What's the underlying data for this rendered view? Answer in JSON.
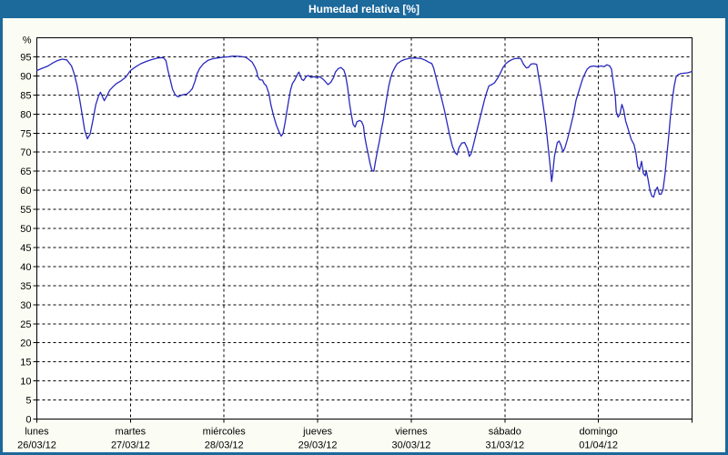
{
  "window": {
    "title": "Humedad relativa [%]"
  },
  "colors": {
    "frame_and_header": "#1C699B",
    "panel_bg": "#FBFDF4",
    "plot_bg": "#FFFFFF",
    "line": "#2828BE",
    "grid": "#000000",
    "text": "#000000",
    "title_text": "#FFFFFF"
  },
  "chart_data": {
    "type": "line",
    "title": "Humedad relativa [%]",
    "grid": "dashed",
    "legend": "none",
    "y_axis": {
      "unit_label": "%",
      "min": 0,
      "max": 100,
      "tick_step": 5,
      "tick_labels": [
        "0",
        "5",
        "10",
        "15",
        "20",
        "25",
        "30",
        "35",
        "40",
        "45",
        "50",
        "55",
        "60",
        "65",
        "70",
        "75",
        "80",
        "85",
        "90",
        "95"
      ]
    },
    "x_axis": {
      "days": [
        {
          "name": "lunes",
          "date": "26/03/12"
        },
        {
          "name": "martes",
          "date": "27/03/12"
        },
        {
          "name": "miércoles",
          "date": "28/03/12"
        },
        {
          "name": "jueves",
          "date": "29/03/12"
        },
        {
          "name": "viernes",
          "date": "30/03/12"
        },
        {
          "name": "sábado",
          "date": "31/03/12"
        },
        {
          "name": "domingo",
          "date": "01/04/12"
        }
      ],
      "span_days": 7
    },
    "series": [
      {
        "name": "Humedad relativa",
        "color": "#2828BE",
        "x_unit": "days_from_start",
        "y_unit": "percent",
        "points": [
          [
            0.0,
            91.4
          ],
          [
            0.05,
            91.9
          ],
          [
            0.12,
            92.6
          ],
          [
            0.17,
            93.4
          ],
          [
            0.22,
            94.0
          ],
          [
            0.27,
            94.4
          ],
          [
            0.32,
            94.2
          ],
          [
            0.37,
            92.6
          ],
          [
            0.4,
            90.5
          ],
          [
            0.43,
            87.5
          ],
          [
            0.46,
            83.5
          ],
          [
            0.49,
            79.0
          ],
          [
            0.51,
            75.8
          ],
          [
            0.54,
            73.5
          ],
          [
            0.57,
            74.8
          ],
          [
            0.6,
            78.5
          ],
          [
            0.63,
            82.5
          ],
          [
            0.66,
            84.8
          ],
          [
            0.68,
            85.7
          ],
          [
            0.7,
            84.6
          ],
          [
            0.72,
            83.5
          ],
          [
            0.75,
            84.8
          ],
          [
            0.78,
            86.3
          ],
          [
            0.82,
            87.3
          ],
          [
            0.85,
            88.0
          ],
          [
            0.9,
            88.7
          ],
          [
            0.95,
            89.7
          ],
          [
            1.0,
            91.4
          ],
          [
            1.05,
            92.3
          ],
          [
            1.11,
            93.2
          ],
          [
            1.17,
            93.8
          ],
          [
            1.23,
            94.3
          ],
          [
            1.29,
            94.7
          ],
          [
            1.35,
            94.8
          ],
          [
            1.38,
            94.0
          ],
          [
            1.4,
            91.5
          ],
          [
            1.43,
            88.5
          ],
          [
            1.45,
            86.5
          ],
          [
            1.48,
            85.0
          ],
          [
            1.51,
            84.5
          ],
          [
            1.54,
            84.9
          ],
          [
            1.57,
            85.1
          ],
          [
            1.6,
            85.2
          ],
          [
            1.63,
            85.8
          ],
          [
            1.66,
            86.6
          ],
          [
            1.69,
            88.6
          ],
          [
            1.71,
            90.5
          ],
          [
            1.74,
            92.0
          ],
          [
            1.78,
            93.2
          ],
          [
            1.83,
            94.1
          ],
          [
            1.88,
            94.5
          ],
          [
            1.93,
            94.7
          ],
          [
            1.99,
            94.9
          ],
          [
            2.04,
            95.0
          ],
          [
            2.1,
            95.2
          ],
          [
            2.17,
            95.1
          ],
          [
            2.23,
            94.9
          ],
          [
            2.26,
            94.4
          ],
          [
            2.3,
            93.6
          ],
          [
            2.33,
            92.3
          ],
          [
            2.35,
            91.1
          ],
          [
            2.36,
            89.9
          ],
          [
            2.38,
            89.0
          ],
          [
            2.41,
            88.9
          ],
          [
            2.43,
            87.9
          ],
          [
            2.45,
            87.5
          ],
          [
            2.48,
            85.3
          ],
          [
            2.5,
            82.5
          ],
          [
            2.53,
            79.5
          ],
          [
            2.56,
            77.0
          ],
          [
            2.59,
            75.2
          ],
          [
            2.61,
            74.2
          ],
          [
            2.63,
            74.9
          ],
          [
            2.65,
            77.5
          ],
          [
            2.67,
            80.5
          ],
          [
            2.69,
            83.5
          ],
          [
            2.71,
            86.2
          ],
          [
            2.73,
            88.0
          ],
          [
            2.75,
            88.7
          ],
          [
            2.79,
            90.7
          ],
          [
            2.8,
            91.0
          ],
          [
            2.83,
            89.1
          ],
          [
            2.85,
            88.8
          ],
          [
            2.88,
            89.9
          ],
          [
            2.9,
            90.1
          ],
          [
            2.93,
            89.6
          ],
          [
            2.96,
            89.8
          ],
          [
            2.99,
            89.5
          ],
          [
            3.02,
            89.8
          ],
          [
            3.05,
            89.3
          ],
          [
            3.08,
            88.6
          ],
          [
            3.11,
            87.7
          ],
          [
            3.14,
            88.3
          ],
          [
            3.17,
            89.6
          ],
          [
            3.19,
            91.0
          ],
          [
            3.22,
            91.9
          ],
          [
            3.25,
            92.2
          ],
          [
            3.28,
            91.5
          ],
          [
            3.3,
            90.0
          ],
          [
            3.32,
            87.0
          ],
          [
            3.34,
            83.0
          ],
          [
            3.36,
            79.8
          ],
          [
            3.38,
            77.2
          ],
          [
            3.4,
            76.6
          ],
          [
            3.42,
            78.0
          ],
          [
            3.45,
            78.3
          ],
          [
            3.47,
            78.0
          ],
          [
            3.49,
            76.8
          ],
          [
            3.5,
            74.5
          ],
          [
            3.52,
            71.8
          ],
          [
            3.54,
            69.5
          ],
          [
            3.56,
            67.0
          ],
          [
            3.58,
            65.2
          ],
          [
            3.6,
            65.0
          ],
          [
            3.62,
            67.8
          ],
          [
            3.64,
            70.5
          ],
          [
            3.66,
            73.0
          ],
          [
            3.68,
            75.8
          ],
          [
            3.7,
            78.3
          ],
          [
            3.72,
            81.5
          ],
          [
            3.74,
            84.5
          ],
          [
            3.76,
            87.3
          ],
          [
            3.78,
            89.5
          ],
          [
            3.8,
            91.0
          ],
          [
            3.83,
            92.4
          ],
          [
            3.85,
            93.2
          ],
          [
            3.89,
            93.9
          ],
          [
            3.93,
            94.3
          ],
          [
            3.98,
            94.6
          ],
          [
            4.04,
            94.7
          ],
          [
            4.08,
            94.6
          ],
          [
            4.11,
            94.5
          ],
          [
            4.15,
            94.1
          ],
          [
            4.18,
            93.7
          ],
          [
            4.22,
            93.2
          ],
          [
            4.24,
            92.0
          ],
          [
            4.26,
            90.0
          ],
          [
            4.29,
            87.0
          ],
          [
            4.32,
            84.5
          ],
          [
            4.35,
            81.5
          ],
          [
            4.38,
            78.0
          ],
          [
            4.41,
            74.5
          ],
          [
            4.44,
            71.5
          ],
          [
            4.47,
            69.8
          ],
          [
            4.49,
            69.3
          ],
          [
            4.51,
            71.2
          ],
          [
            4.54,
            72.4
          ],
          [
            4.57,
            72.5
          ],
          [
            4.6,
            71.0
          ],
          [
            4.62,
            68.9
          ],
          [
            4.64,
            69.6
          ],
          [
            4.66,
            71.5
          ],
          [
            4.69,
            74.5
          ],
          [
            4.72,
            77.5
          ],
          [
            4.75,
            80.5
          ],
          [
            4.78,
            83.5
          ],
          [
            4.81,
            86.0
          ],
          [
            4.83,
            87.4
          ],
          [
            4.86,
            87.7
          ],
          [
            4.89,
            88.2
          ],
          [
            4.92,
            89.3
          ],
          [
            4.95,
            90.6
          ],
          [
            4.98,
            92.2
          ],
          [
            5.01,
            93.2
          ],
          [
            5.04,
            93.8
          ],
          [
            5.07,
            94.2
          ],
          [
            5.1,
            94.5
          ],
          [
            5.14,
            94.6
          ],
          [
            5.17,
            94.5
          ],
          [
            5.2,
            93.0
          ],
          [
            5.23,
            92.1
          ],
          [
            5.25,
            92.2
          ],
          [
            5.28,
            93.1
          ],
          [
            5.31,
            93.2
          ],
          [
            5.34,
            93.0
          ],
          [
            5.36,
            90.0
          ],
          [
            5.38,
            87.2
          ],
          [
            5.4,
            84.0
          ],
          [
            5.42,
            80.4
          ],
          [
            5.44,
            76.8
          ],
          [
            5.46,
            72.0
          ],
          [
            5.48,
            67.2
          ],
          [
            5.5,
            62.3
          ],
          [
            5.51,
            64.0
          ],
          [
            5.53,
            68.9
          ],
          [
            5.56,
            72.5
          ],
          [
            5.58,
            72.9
          ],
          [
            5.6,
            71.8
          ],
          [
            5.62,
            70.1
          ],
          [
            5.64,
            71.0
          ],
          [
            5.67,
            73.5
          ],
          [
            5.7,
            76.5
          ],
          [
            5.73,
            79.6
          ],
          [
            5.76,
            83.6
          ],
          [
            5.8,
            86.8
          ],
          [
            5.83,
            89.2
          ],
          [
            5.86,
            90.8
          ],
          [
            5.88,
            91.8
          ],
          [
            5.91,
            92.4
          ],
          [
            5.95,
            92.6
          ],
          [
            5.99,
            92.4
          ],
          [
            6.03,
            92.6
          ],
          [
            6.06,
            92.4
          ],
          [
            6.09,
            92.9
          ],
          [
            6.12,
            92.6
          ],
          [
            6.14,
            91.8
          ],
          [
            6.16,
            88.0
          ],
          [
            6.18,
            84.5
          ],
          [
            6.19,
            80.6
          ],
          [
            6.21,
            79.2
          ],
          [
            6.23,
            80.0
          ],
          [
            6.25,
            82.5
          ],
          [
            6.27,
            81.0
          ],
          [
            6.29,
            78.2
          ],
          [
            6.32,
            75.8
          ],
          [
            6.35,
            73.4
          ],
          [
            6.38,
            72.0
          ],
          [
            6.4,
            69.8
          ],
          [
            6.42,
            66.2
          ],
          [
            6.44,
            65.4
          ],
          [
            6.46,
            67.6
          ],
          [
            6.48,
            64.4
          ],
          [
            6.5,
            63.8
          ],
          [
            6.51,
            65.2
          ],
          [
            6.53,
            62.8
          ],
          [
            6.55,
            60.0
          ],
          [
            6.57,
            58.5
          ],
          [
            6.59,
            58.2
          ],
          [
            6.61,
            60.0
          ],
          [
            6.63,
            60.8
          ],
          [
            6.65,
            59.0
          ],
          [
            6.67,
            59.0
          ],
          [
            6.69,
            60.2
          ],
          [
            6.71,
            64.0
          ],
          [
            6.73,
            69.0
          ],
          [
            6.75,
            74.0
          ],
          [
            6.77,
            79.5
          ],
          [
            6.79,
            84.0
          ],
          [
            6.81,
            87.5
          ],
          [
            6.83,
            89.8
          ],
          [
            6.85,
            90.3
          ],
          [
            6.88,
            90.6
          ],
          [
            6.91,
            90.7
          ],
          [
            6.95,
            90.8
          ],
          [
            6.98,
            91.0
          ],
          [
            7.0,
            91.2
          ]
        ]
      }
    ]
  }
}
